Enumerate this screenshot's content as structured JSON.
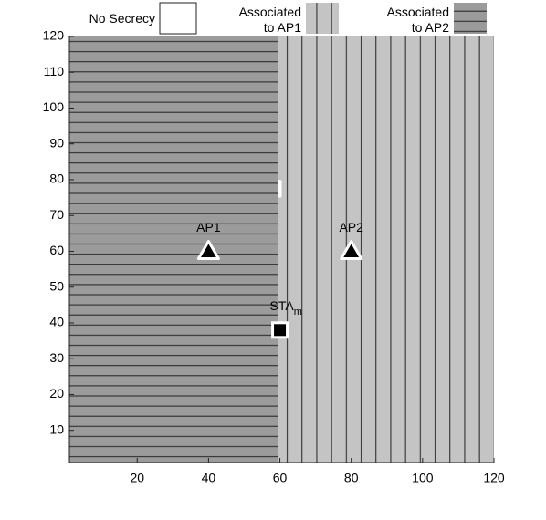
{
  "chart_data": {
    "type": "region",
    "xlim": [
      1,
      120
    ],
    "ylim": [
      1,
      120
    ],
    "xticks": [
      20,
      40,
      60,
      80,
      100,
      120
    ],
    "yticks": [
      10,
      20,
      30,
      40,
      50,
      60,
      70,
      80,
      90,
      100,
      110,
      120
    ],
    "regions": [
      {
        "name": "No Secrecy",
        "color": "#ffffff",
        "pattern": "none",
        "x": [
          59.5,
          60.5
        ],
        "y": [
          75,
          80
        ]
      },
      {
        "name": "Associated to AP1",
        "color": "#c4c4c4",
        "pattern": "vertical",
        "x": [
          59.5,
          120
        ],
        "y": [
          1,
          120
        ]
      },
      {
        "name": "Associated to AP2",
        "color": "#9b9b9b",
        "pattern": "horizontal",
        "x": [
          1,
          59.5
        ],
        "y": [
          1,
          120
        ]
      }
    ],
    "points": [
      {
        "label": "AP1",
        "marker": "triangle",
        "x": 40,
        "y": 60
      },
      {
        "label": "AP2",
        "marker": "triangle",
        "x": 80,
        "y": 60
      },
      {
        "label": "STA",
        "subscript": "m",
        "marker": "square",
        "x": 60,
        "y": 38
      }
    ]
  }
}
